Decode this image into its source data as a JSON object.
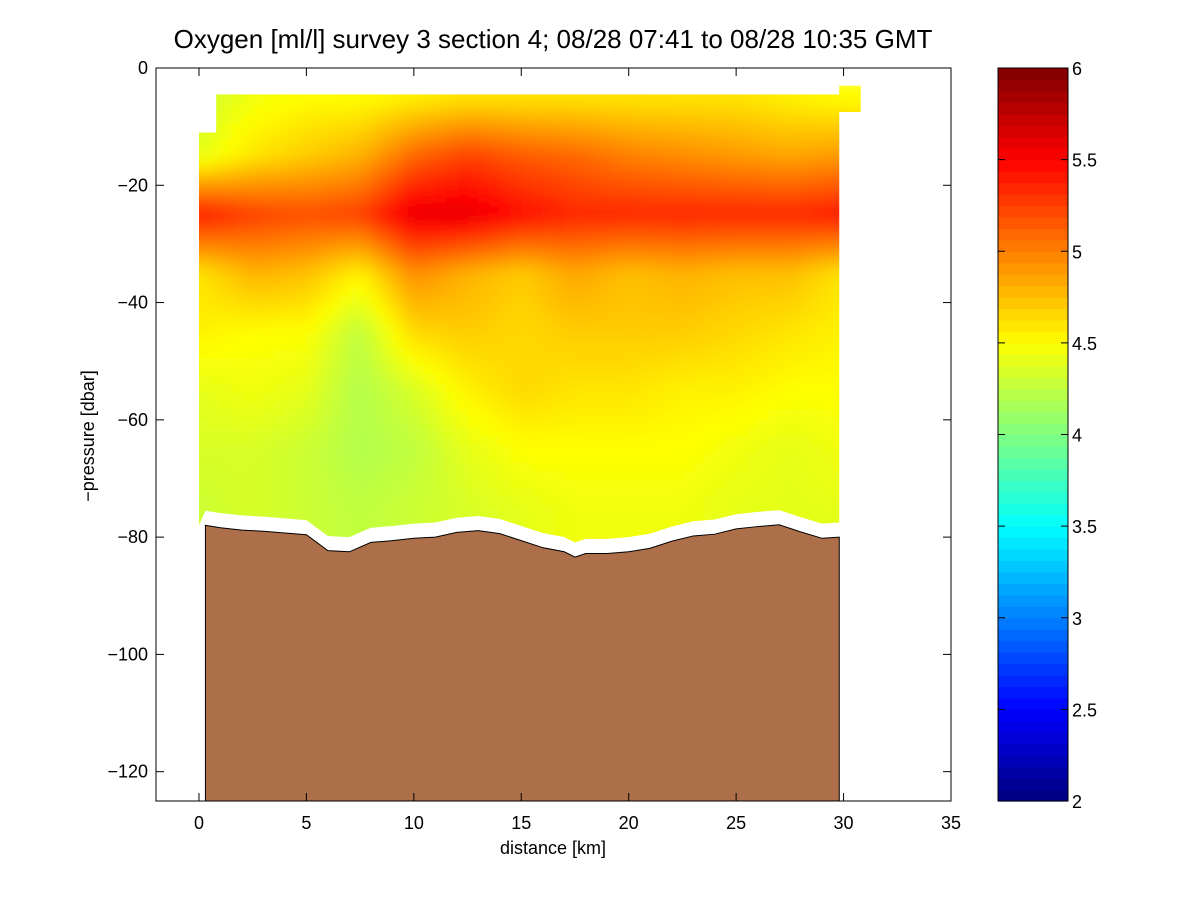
{
  "chart_data": {
    "type": "heatmap",
    "title": "Oxygen [ml/l] survey 3 section 4; 08/28 07:41 to 08/28 10:35 GMT",
    "xlabel": "distance [km]",
    "ylabel": "−pressure [dbar]",
    "xlim": [
      -2,
      35
    ],
    "ylim": [
      -125,
      0
    ],
    "x_ticks": [
      0,
      5,
      10,
      15,
      20,
      25,
      30,
      35
    ],
    "x_tick_labels": [
      "0",
      "5",
      "10",
      "15",
      "20",
      "25",
      "30",
      "35"
    ],
    "y_ticks": [
      0,
      -20,
      -40,
      -60,
      -80,
      -100,
      -120
    ],
    "y_tick_labels": [
      "0",
      "−20",
      "−40",
      "−60",
      "−80",
      "−100",
      "−120"
    ],
    "colorbar": {
      "range": [
        2,
        6
      ],
      "ticks": [
        2,
        2.5,
        3,
        3.5,
        4,
        4.5,
        5,
        5.5,
        6
      ],
      "tick_labels": [
        "2",
        "2.5",
        "3",
        "3.5",
        "4",
        "4.5",
        "5",
        "5.5",
        "6"
      ],
      "colormap": "jet"
    },
    "colors": {
      "seafloor": "#ad6e4a",
      "axes": "#000000",
      "background": "#ffffff"
    },
    "seafloor_profile": {
      "distance_km": [
        0.3,
        1.0,
        2.0,
        3.0,
        4.0,
        5.0,
        6.0,
        7.0,
        8.0,
        9.0,
        10.0,
        11.0,
        12.0,
        13.0,
        14.0,
        15.0,
        16.0,
        17.0,
        17.5,
        18.0,
        19.0,
        20.0,
        21.0,
        22.0,
        23.0,
        24.0,
        25.0,
        26.0,
        27.0,
        28.0,
        29.0,
        29.8
      ],
      "minus_pressure_dbar": [
        -78.0,
        -78.4,
        -78.8,
        -79.0,
        -79.3,
        -79.6,
        -82.3,
        -82.5,
        -80.9,
        -80.6,
        -80.2,
        -80.0,
        -79.2,
        -78.9,
        -79.4,
        -80.6,
        -81.8,
        -82.5,
        -83.4,
        -82.8,
        -82.8,
        -82.5,
        -81.9,
        -80.7,
        -79.8,
        -79.5,
        -78.6,
        -78.2,
        -77.9,
        -79.1,
        -80.2,
        -80.0
      ]
    },
    "oxygen_ml_per_l": {
      "distance_km": [
        0,
        2.5,
        5,
        7.5,
        10,
        12.5,
        15,
        17.5,
        20,
        22.5,
        25,
        27.5,
        30
      ],
      "minus_pressure_dbar": [
        -5,
        -15,
        -25,
        -35,
        -45,
        -55,
        -65,
        -75,
        -80
      ],
      "values": [
        [
          4.3,
          4.45,
          4.5,
          4.5,
          4.55,
          4.6,
          4.6,
          4.6,
          4.6,
          4.6,
          4.6,
          4.55,
          4.5
        ],
        [
          4.4,
          4.6,
          4.7,
          4.8,
          5.1,
          5.25,
          5.15,
          5.1,
          5.0,
          4.95,
          4.9,
          4.85,
          4.9
        ],
        [
          5.4,
          5.25,
          5.2,
          5.25,
          5.6,
          5.6,
          5.45,
          5.35,
          5.35,
          5.35,
          5.35,
          5.35,
          5.4
        ],
        [
          4.6,
          4.8,
          4.75,
          4.55,
          4.95,
          4.8,
          4.7,
          4.85,
          4.75,
          4.8,
          4.75,
          4.75,
          4.6
        ],
        [
          4.55,
          4.5,
          4.5,
          4.25,
          4.65,
          4.7,
          4.65,
          4.7,
          4.7,
          4.7,
          4.65,
          4.6,
          4.55
        ],
        [
          4.4,
          4.45,
          4.4,
          4.2,
          4.35,
          4.55,
          4.65,
          4.6,
          4.6,
          4.55,
          4.55,
          4.5,
          4.5
        ],
        [
          4.35,
          4.35,
          4.3,
          4.2,
          4.25,
          4.4,
          4.5,
          4.5,
          4.5,
          4.5,
          4.45,
          4.4,
          4.45
        ],
        [
          4.3,
          4.35,
          4.3,
          4.25,
          4.3,
          4.35,
          4.4,
          4.45,
          4.45,
          4.45,
          4.4,
          4.4,
          4.4
        ],
        [
          4.3,
          4.3,
          4.3,
          4.25,
          4.3,
          4.35,
          4.4,
          4.45,
          4.45,
          4.45,
          4.4,
          4.4,
          4.4
        ]
      ]
    }
  }
}
